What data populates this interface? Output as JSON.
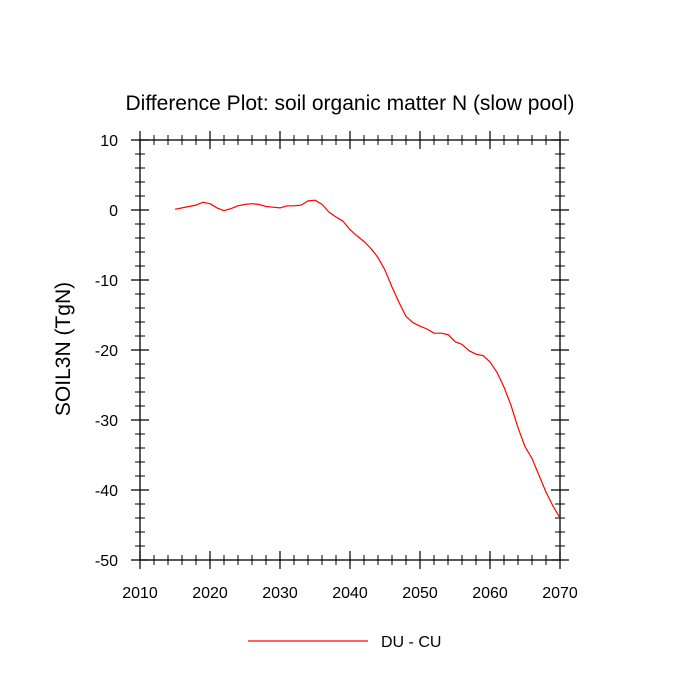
{
  "chart_data": {
    "type": "line",
    "title": "Difference Plot: soil organic matter N (slow pool)",
    "ylabel": "SOIL3N  (TgN)",
    "xlabel": "",
    "xlim": [
      2010,
      2070
    ],
    "ylim": [
      -50,
      10
    ],
    "x_ticks": [
      2010,
      2020,
      2030,
      2040,
      2050,
      2060,
      2070
    ],
    "y_ticks": [
      10,
      0,
      -10,
      -20,
      -30,
      -40,
      -50
    ],
    "x_minor_step": 2,
    "y_minor_step": 2,
    "grid": false,
    "legend_position": "bottom-center",
    "series": [
      {
        "name": "DU - CU",
        "color": "#ff0000",
        "x": [
          2015,
          2016,
          2017,
          2018,
          2019,
          2020,
          2021,
          2022,
          2023,
          2024,
          2025,
          2026,
          2027,
          2028,
          2029,
          2030,
          2031,
          2032,
          2033,
          2034,
          2035,
          2036,
          2037,
          2038,
          2039,
          2040,
          2041,
          2042,
          2043,
          2044,
          2045,
          2046,
          2047,
          2048,
          2049,
          2050,
          2051,
          2052,
          2053,
          2054,
          2055,
          2056,
          2057,
          2058,
          2059,
          2060,
          2061,
          2062,
          2063,
          2064,
          2065,
          2066,
          2067,
          2068,
          2069,
          2070
        ],
        "y": [
          0.1,
          0.3,
          0.5,
          0.7,
          1.1,
          0.9,
          0.3,
          -0.1,
          0.2,
          0.6,
          0.8,
          0.9,
          0.8,
          0.5,
          0.4,
          0.3,
          0.6,
          0.6,
          0.7,
          1.3,
          1.4,
          0.8,
          -0.3,
          -1.0,
          -1.6,
          -2.8,
          -3.7,
          -4.5,
          -5.5,
          -6.8,
          -8.6,
          -11.0,
          -13.2,
          -15.2,
          -16.1,
          -16.6,
          -17.0,
          -17.6,
          -17.6,
          -17.8,
          -18.8,
          -19.2,
          -20.1,
          -20.6,
          -20.8,
          -21.7,
          -23.2,
          -25.3,
          -27.9,
          -31.1,
          -33.8,
          -35.5,
          -37.9,
          -40.3,
          -42.3,
          -44.0
        ]
      }
    ]
  }
}
